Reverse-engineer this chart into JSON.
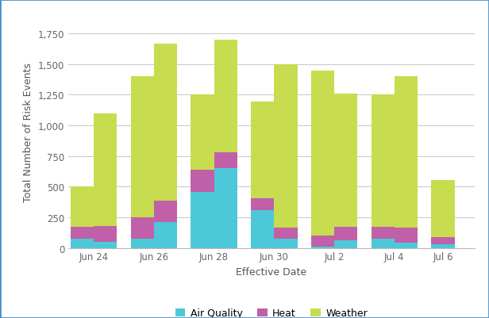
{
  "n_bars": 13,
  "air_quality": [
    75,
    50,
    75,
    210,
    460,
    650,
    305,
    75,
    10,
    65,
    75,
    40,
    30
  ],
  "heat": [
    100,
    130,
    175,
    175,
    175,
    130,
    100,
    90,
    90,
    110,
    100,
    125,
    60
  ],
  "weather": [
    325,
    920,
    1150,
    1285,
    615,
    920,
    790,
    1335,
    1345,
    1085,
    1075,
    1235,
    465
  ],
  "color_air": "#4DC8D8",
  "color_heat": "#C060A8",
  "color_weather": "#C8DC50",
  "xlabel": "Effective Date",
  "ylabel": "Total Number of Risk Events",
  "yticks": [
    0,
    250,
    500,
    750,
    1000,
    1250,
    1500,
    1750
  ],
  "ytick_labels": [
    "0",
    "250",
    "500",
    "750",
    "1,000",
    "1,250",
    "1,500",
    "1,750"
  ],
  "ymax": 1900,
  "background_color": "#FFFFFF",
  "grid_color": "#CCCCCC",
  "border_color": "#4A90C8",
  "legend_labels": [
    "Air Quality",
    "Heat",
    "Weather"
  ],
  "bar_width": 0.85,
  "x_tick_labels": [
    "Jun 24",
    "Jun 26",
    "Jun 28",
    "Jun 30",
    "Jul 2",
    "Jul 4",
    "Jul 6"
  ]
}
